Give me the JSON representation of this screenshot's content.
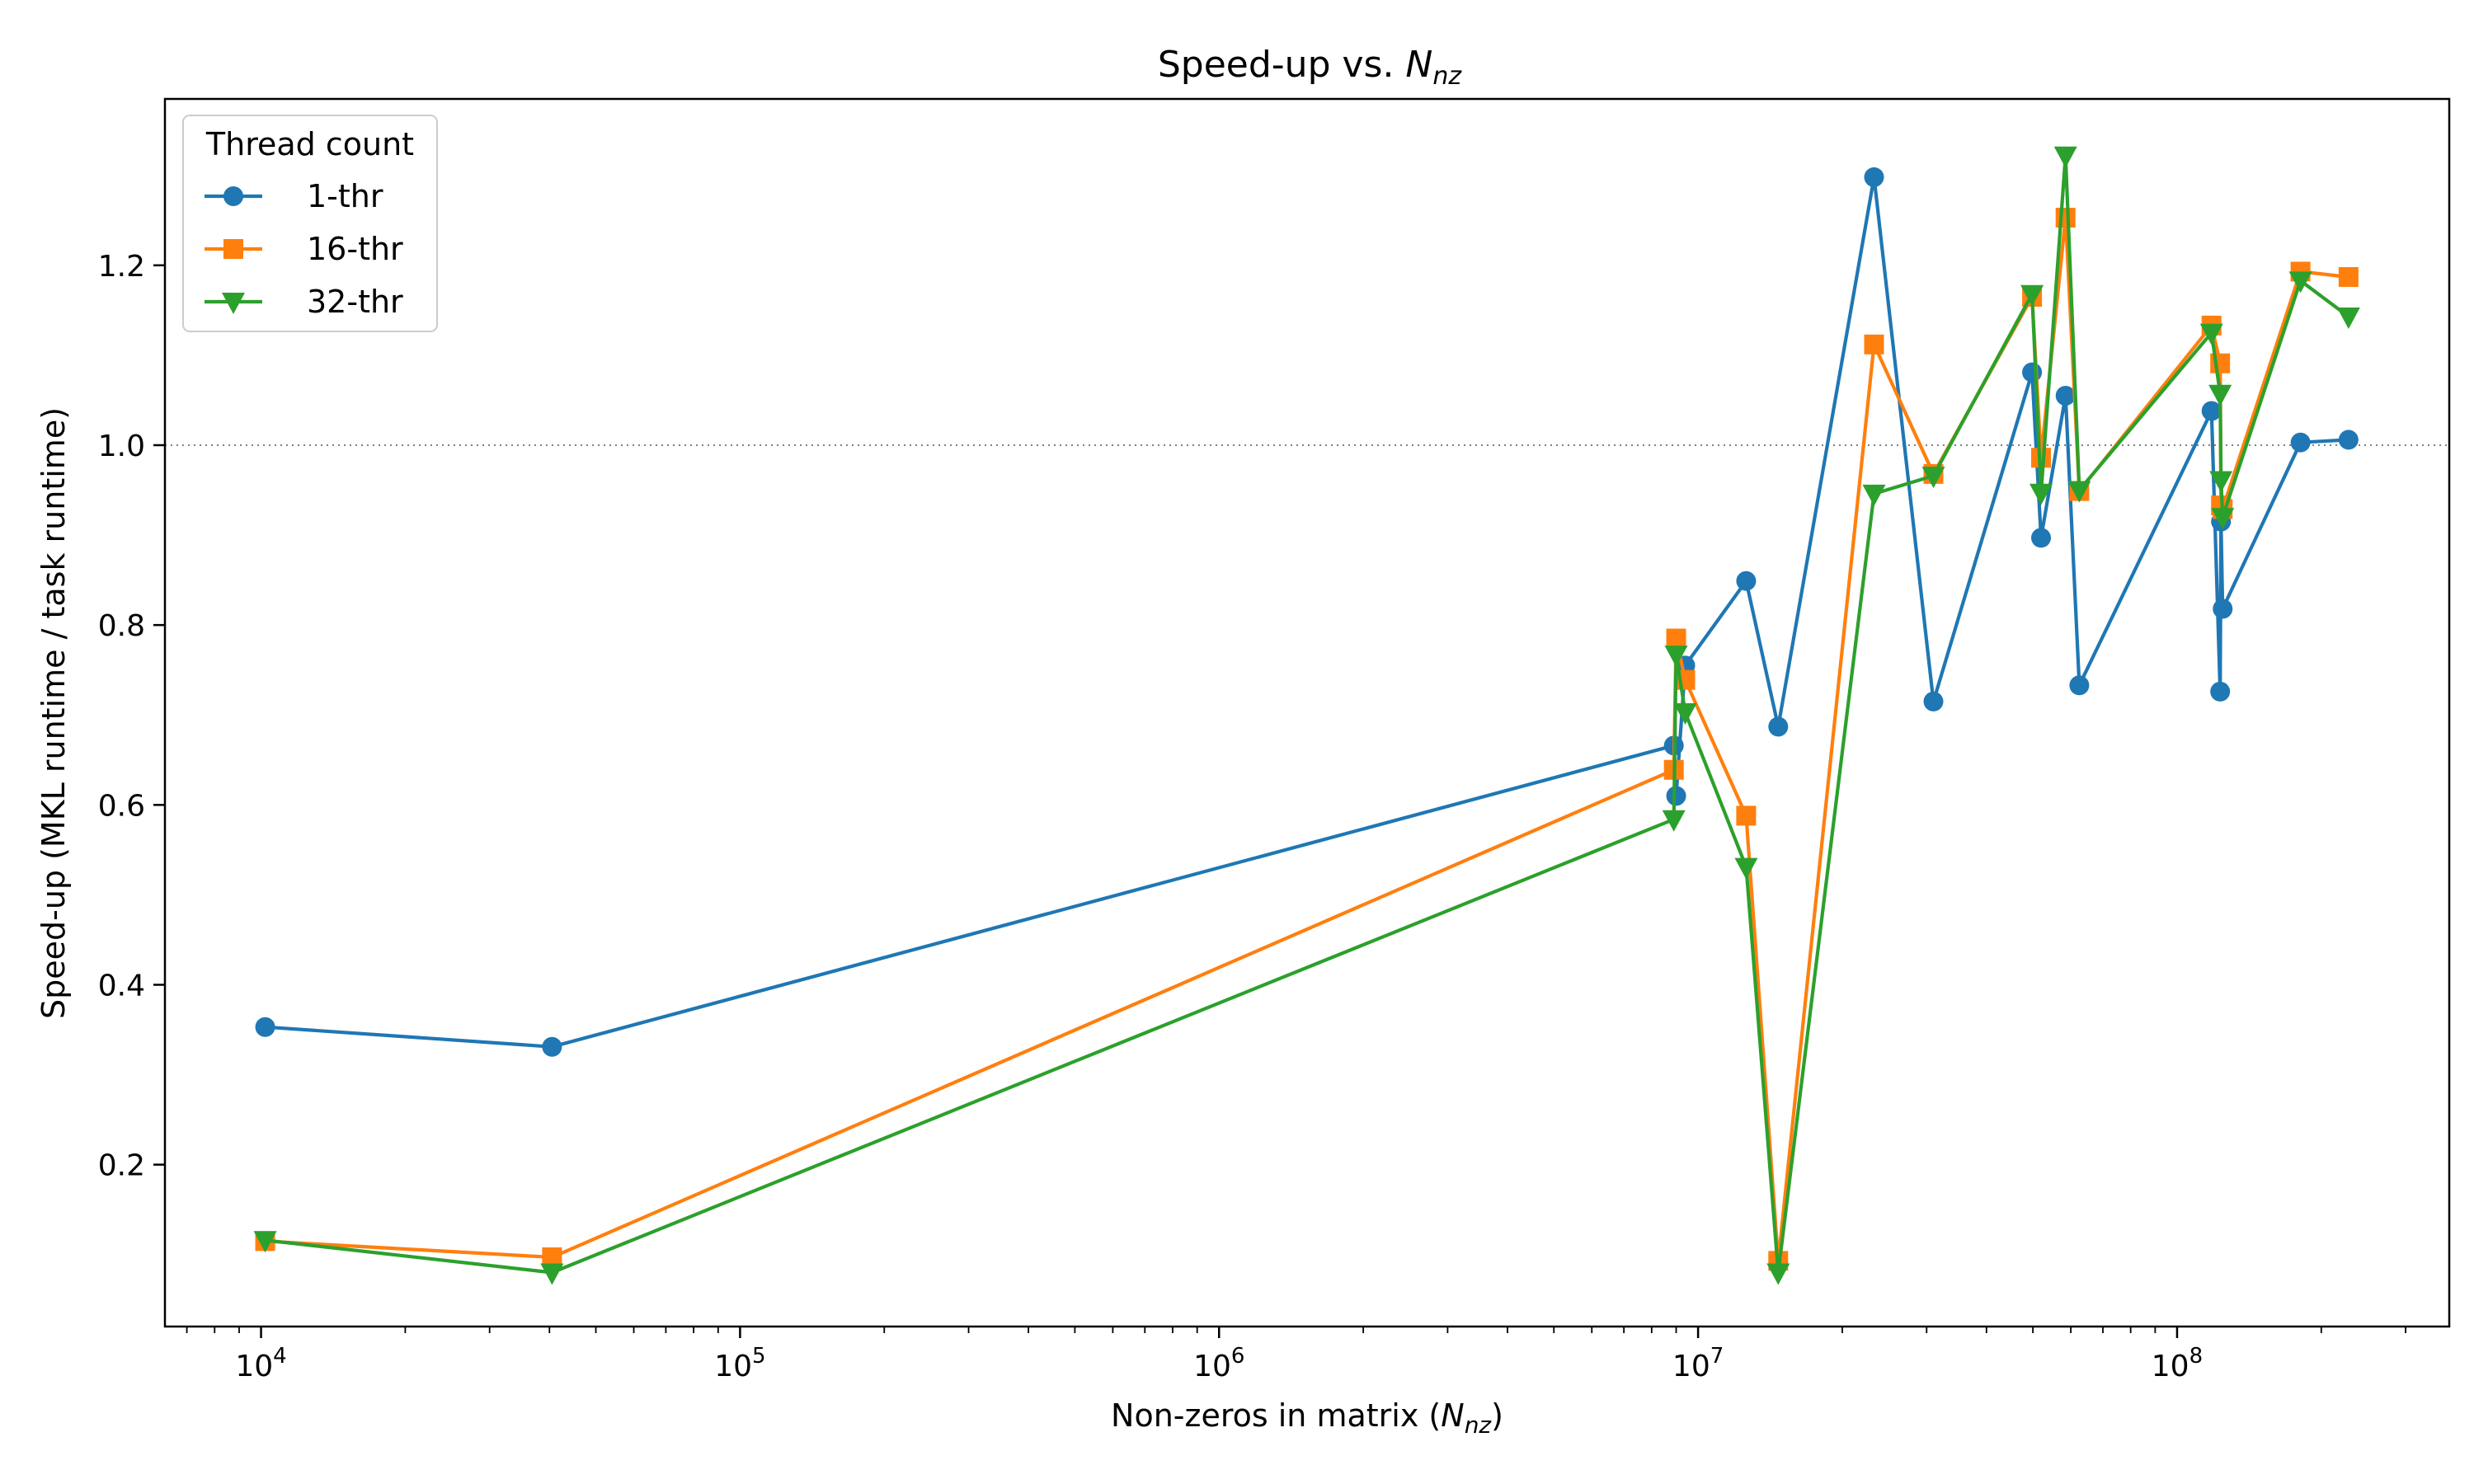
{
  "chart_data": {
    "type": "line",
    "title_main": "Speed-up vs. ",
    "title_math_base": "N",
    "title_math_sub": "nz",
    "xlabel_main": "Non-zeros in matrix (",
    "xlabel_math_base": "N",
    "xlabel_math_sub": "nz",
    "xlabel_end": ")",
    "ylabel": "Speed-up (MKL runtime / task runtime)",
    "xscale": "log",
    "xlim": [
      6300,
      370000000
    ],
    "ylim": [
      0.02,
      1.385
    ],
    "xticks": [
      {
        "value": 10000,
        "base": "10",
        "exp": "4"
      },
      {
        "value": 100000,
        "base": "10",
        "exp": "5"
      },
      {
        "value": 1000000,
        "base": "10",
        "exp": "6"
      },
      {
        "value": 10000000,
        "base": "10",
        "exp": "7"
      },
      {
        "value": 100000000,
        "base": "10",
        "exp": "8"
      }
    ],
    "yticks": [
      {
        "value": 0.2,
        "label": "0.2"
      },
      {
        "value": 0.4,
        "label": "0.4"
      },
      {
        "value": 0.6,
        "label": "0.6"
      },
      {
        "value": 0.8,
        "label": "0.8"
      },
      {
        "value": 1.0,
        "label": "1.0"
      },
      {
        "value": 1.2,
        "label": "1.2"
      }
    ],
    "reference_line": {
      "y": 1.0,
      "style": "dotted",
      "color": "#808080"
    },
    "legend": {
      "title": "Thread count",
      "position": "top-left"
    },
    "series": [
      {
        "name": "1-thr",
        "color": "#1f77b4",
        "marker": "circle",
        "points": [
          [
            10200,
            0.353
          ],
          [
            40500,
            0.331
          ],
          [
            8900000,
            0.666
          ],
          [
            9000000,
            0.61
          ],
          [
            9400000,
            0.755
          ],
          [
            12600000,
            0.849
          ],
          [
            14700000,
            0.687
          ],
          [
            23300000,
            1.298
          ],
          [
            31000000,
            0.715
          ],
          [
            49800000,
            1.081
          ],
          [
            52000000,
            0.897
          ],
          [
            58500000,
            1.055
          ],
          [
            62500000,
            0.733
          ],
          [
            118000000,
            1.038
          ],
          [
            123000000,
            0.726
          ],
          [
            123500000,
            0.915
          ],
          [
            124500000,
            0.818
          ],
          [
            181000000,
            1.003
          ],
          [
            228000000,
            1.006
          ]
        ]
      },
      {
        "name": "16-thr",
        "color": "#ff7f0e",
        "marker": "square",
        "points": [
          [
            10200,
            0.115
          ],
          [
            40500,
            0.097
          ],
          [
            8900000,
            0.639
          ],
          [
            9000000,
            0.785
          ],
          [
            9400000,
            0.739
          ],
          [
            12600000,
            0.588
          ],
          [
            14700000,
            0.093
          ],
          [
            23300000,
            1.112
          ],
          [
            31000000,
            0.968
          ],
          [
            49800000,
            1.165
          ],
          [
            52000000,
            0.986
          ],
          [
            58500000,
            1.253
          ],
          [
            62500000,
            0.949
          ],
          [
            118000000,
            1.133
          ],
          [
            123000000,
            1.091
          ],
          [
            123500000,
            0.933
          ],
          [
            124500000,
            0.929
          ],
          [
            181000000,
            1.193
          ],
          [
            228000000,
            1.187
          ]
        ]
      },
      {
        "name": "32-thr",
        "color": "#2ca02c",
        "marker": "triangle-down",
        "points": [
          [
            10200,
            0.116
          ],
          [
            40500,
            0.08
          ],
          [
            8900000,
            0.584
          ],
          [
            9000000,
            0.767
          ],
          [
            9400000,
            0.703
          ],
          [
            12600000,
            0.531
          ],
          [
            14700000,
            0.08
          ],
          [
            23300000,
            0.946
          ],
          [
            31000000,
            0.966
          ],
          [
            49800000,
            1.168
          ],
          [
            52000000,
            0.947
          ],
          [
            58500000,
            1.322
          ],
          [
            62500000,
            0.95
          ],
          [
            118000000,
            1.125
          ],
          [
            123000000,
            1.057
          ],
          [
            123500000,
            0.961
          ],
          [
            124500000,
            0.92
          ],
          [
            181000000,
            1.183
          ],
          [
            228000000,
            1.143
          ]
        ]
      }
    ]
  }
}
